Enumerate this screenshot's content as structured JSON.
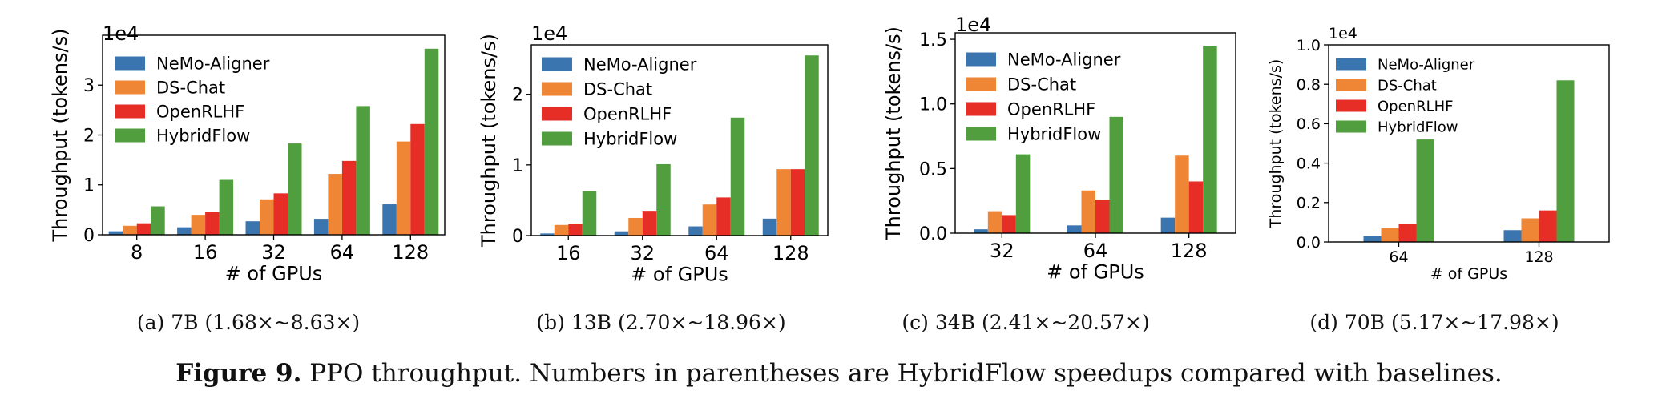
{
  "colors": {
    "NeMo-Aligner": "#3b75af",
    "DS-Chat": "#ef8636",
    "OpenRLHF": "#e62e27",
    "HybridFlow": "#519e3e"
  },
  "figure_caption": {
    "label": "Figure 9.",
    "text": "PPO throughput. Numbers in parentheses are HybridFlow speedups compared with baselines."
  },
  "chart_data": [
    {
      "type": "bar",
      "id": "a",
      "caption": "(a)  7B (1.68×~8.63×)",
      "xlabel": "# of GPUs",
      "ylabel": "Throughput (tokens/s)",
      "scale_label": "1e4",
      "categories": [
        "8",
        "16",
        "32",
        "64",
        "128"
      ],
      "ylim": [
        0,
        4.0
      ],
      "yticks": [
        0,
        1,
        2,
        3
      ],
      "ytick_labels": [
        "0",
        "1",
        "2",
        "3"
      ],
      "legend_position": "upper-left",
      "series": [
        {
          "name": "NeMo-Aligner",
          "values": [
            0.07,
            0.15,
            0.27,
            0.32,
            0.61
          ]
        },
        {
          "name": "DS-Chat",
          "values": [
            0.18,
            0.4,
            0.71,
            1.22,
            1.87
          ]
        },
        {
          "name": "OpenRLHF",
          "values": [
            0.23,
            0.45,
            0.83,
            1.48,
            2.22
          ]
        },
        {
          "name": "HybridFlow",
          "values": [
            0.57,
            1.1,
            1.83,
            2.58,
            3.73
          ]
        }
      ]
    },
    {
      "type": "bar",
      "id": "b",
      "caption": "(b)  13B (2.70×~18.96×)",
      "xlabel": "# of GPUs",
      "ylabel": "Throughput (tokens/s)",
      "scale_label": "1e4",
      "categories": [
        "16",
        "32",
        "64",
        "128"
      ],
      "ylim": [
        0,
        2.7
      ],
      "yticks": [
        0,
        1,
        2
      ],
      "ytick_labels": [
        "0",
        "1",
        "2"
      ],
      "legend_position": "upper-left",
      "series": [
        {
          "name": "NeMo-Aligner",
          "values": [
            0.03,
            0.06,
            0.13,
            0.24
          ]
        },
        {
          "name": "DS-Chat",
          "values": [
            0.15,
            0.25,
            0.44,
            0.94
          ]
        },
        {
          "name": "OpenRLHF",
          "values": [
            0.17,
            0.35,
            0.54,
            0.94
          ]
        },
        {
          "name": "HybridFlow",
          "values": [
            0.63,
            1.01,
            1.67,
            2.55
          ]
        }
      ]
    },
    {
      "type": "bar",
      "id": "c",
      "caption": "(c)  34B (2.41×~20.57×)",
      "xlabel": "# of GPUs",
      "ylabel": "Throughput (tokens/s)",
      "scale_label": "1e4",
      "categories": [
        "32",
        "64",
        "128"
      ],
      "ylim": [
        0,
        1.55
      ],
      "yticks": [
        0.0,
        0.5,
        1.0,
        1.5
      ],
      "ytick_labels": [
        "0.0",
        "0.5",
        "1.0",
        "1.5"
      ],
      "legend_position": "upper-left",
      "series": [
        {
          "name": "NeMo-Aligner",
          "values": [
            0.03,
            0.06,
            0.12
          ]
        },
        {
          "name": "DS-Chat",
          "values": [
            0.17,
            0.33,
            0.6
          ]
        },
        {
          "name": "OpenRLHF",
          "values": [
            0.14,
            0.26,
            0.4
          ]
        },
        {
          "name": "HybridFlow",
          "values": [
            0.61,
            0.9,
            1.45
          ]
        }
      ]
    },
    {
      "type": "bar",
      "id": "d",
      "caption": "(d)  70B (5.17×~17.98×)",
      "xlabel": "# of GPUs",
      "ylabel": "Throughput (tokens/s)",
      "scale_label": "1e4",
      "categories": [
        "64",
        "128"
      ],
      "ylim": [
        0,
        1.0
      ],
      "yticks": [
        0.0,
        0.2,
        0.4,
        0.6,
        0.8,
        1.0
      ],
      "ytick_labels": [
        "0.0",
        "0.2",
        "0.4",
        "0.6",
        "0.8",
        "1.0"
      ],
      "legend_position": "upper-left",
      "series": [
        {
          "name": "NeMo-Aligner",
          "values": [
            0.03,
            0.06
          ]
        },
        {
          "name": "DS-Chat",
          "values": [
            0.07,
            0.12
          ]
        },
        {
          "name": "OpenRLHF",
          "values": [
            0.09,
            0.16
          ]
        },
        {
          "name": "HybridFlow",
          "values": [
            0.52,
            0.82
          ]
        }
      ]
    }
  ]
}
